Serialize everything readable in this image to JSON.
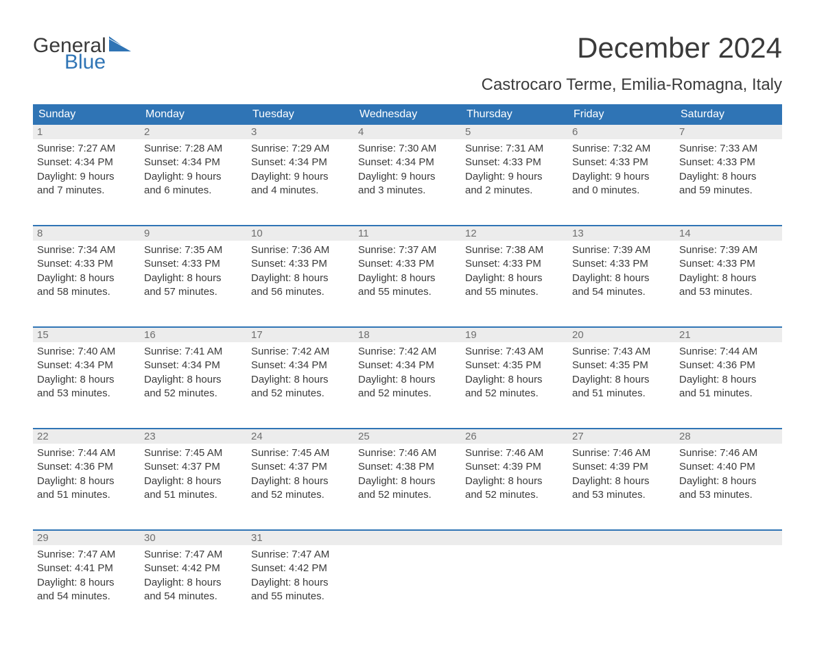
{
  "logo": {
    "word1": "General",
    "word2": "Blue",
    "accent_color": "#2f74b5"
  },
  "title": "December 2024",
  "location": "Castrocaro Terme, Emilia-Romagna, Italy",
  "colors": {
    "header_bg": "#2f74b5",
    "header_fg": "#ffffff",
    "daynum_bg": "#ececec",
    "daynum_fg": "#6e6e6e",
    "text": "#3a3a3a",
    "background": "#ffffff"
  },
  "weekdays": [
    "Sunday",
    "Monday",
    "Tuesday",
    "Wednesday",
    "Thursday",
    "Friday",
    "Saturday"
  ],
  "weeks": [
    [
      {
        "day": "1",
        "sunrise": "Sunrise: 7:27 AM",
        "sunset": "Sunset: 4:34 PM",
        "d1": "Daylight: 9 hours",
        "d2": "and 7 minutes."
      },
      {
        "day": "2",
        "sunrise": "Sunrise: 7:28 AM",
        "sunset": "Sunset: 4:34 PM",
        "d1": "Daylight: 9 hours",
        "d2": "and 6 minutes."
      },
      {
        "day": "3",
        "sunrise": "Sunrise: 7:29 AM",
        "sunset": "Sunset: 4:34 PM",
        "d1": "Daylight: 9 hours",
        "d2": "and 4 minutes."
      },
      {
        "day": "4",
        "sunrise": "Sunrise: 7:30 AM",
        "sunset": "Sunset: 4:34 PM",
        "d1": "Daylight: 9 hours",
        "d2": "and 3 minutes."
      },
      {
        "day": "5",
        "sunrise": "Sunrise: 7:31 AM",
        "sunset": "Sunset: 4:33 PM",
        "d1": "Daylight: 9 hours",
        "d2": "and 2 minutes."
      },
      {
        "day": "6",
        "sunrise": "Sunrise: 7:32 AM",
        "sunset": "Sunset: 4:33 PM",
        "d1": "Daylight: 9 hours",
        "d2": "and 0 minutes."
      },
      {
        "day": "7",
        "sunrise": "Sunrise: 7:33 AM",
        "sunset": "Sunset: 4:33 PM",
        "d1": "Daylight: 8 hours",
        "d2": "and 59 minutes."
      }
    ],
    [
      {
        "day": "8",
        "sunrise": "Sunrise: 7:34 AM",
        "sunset": "Sunset: 4:33 PM",
        "d1": "Daylight: 8 hours",
        "d2": "and 58 minutes."
      },
      {
        "day": "9",
        "sunrise": "Sunrise: 7:35 AM",
        "sunset": "Sunset: 4:33 PM",
        "d1": "Daylight: 8 hours",
        "d2": "and 57 minutes."
      },
      {
        "day": "10",
        "sunrise": "Sunrise: 7:36 AM",
        "sunset": "Sunset: 4:33 PM",
        "d1": "Daylight: 8 hours",
        "d2": "and 56 minutes."
      },
      {
        "day": "11",
        "sunrise": "Sunrise: 7:37 AM",
        "sunset": "Sunset: 4:33 PM",
        "d1": "Daylight: 8 hours",
        "d2": "and 55 minutes."
      },
      {
        "day": "12",
        "sunrise": "Sunrise: 7:38 AM",
        "sunset": "Sunset: 4:33 PM",
        "d1": "Daylight: 8 hours",
        "d2": "and 55 minutes."
      },
      {
        "day": "13",
        "sunrise": "Sunrise: 7:39 AM",
        "sunset": "Sunset: 4:33 PM",
        "d1": "Daylight: 8 hours",
        "d2": "and 54 minutes."
      },
      {
        "day": "14",
        "sunrise": "Sunrise: 7:39 AM",
        "sunset": "Sunset: 4:33 PM",
        "d1": "Daylight: 8 hours",
        "d2": "and 53 minutes."
      }
    ],
    [
      {
        "day": "15",
        "sunrise": "Sunrise: 7:40 AM",
        "sunset": "Sunset: 4:34 PM",
        "d1": "Daylight: 8 hours",
        "d2": "and 53 minutes."
      },
      {
        "day": "16",
        "sunrise": "Sunrise: 7:41 AM",
        "sunset": "Sunset: 4:34 PM",
        "d1": "Daylight: 8 hours",
        "d2": "and 52 minutes."
      },
      {
        "day": "17",
        "sunrise": "Sunrise: 7:42 AM",
        "sunset": "Sunset: 4:34 PM",
        "d1": "Daylight: 8 hours",
        "d2": "and 52 minutes."
      },
      {
        "day": "18",
        "sunrise": "Sunrise: 7:42 AM",
        "sunset": "Sunset: 4:34 PM",
        "d1": "Daylight: 8 hours",
        "d2": "and 52 minutes."
      },
      {
        "day": "19",
        "sunrise": "Sunrise: 7:43 AM",
        "sunset": "Sunset: 4:35 PM",
        "d1": "Daylight: 8 hours",
        "d2": "and 52 minutes."
      },
      {
        "day": "20",
        "sunrise": "Sunrise: 7:43 AM",
        "sunset": "Sunset: 4:35 PM",
        "d1": "Daylight: 8 hours",
        "d2": "and 51 minutes."
      },
      {
        "day": "21",
        "sunrise": "Sunrise: 7:44 AM",
        "sunset": "Sunset: 4:36 PM",
        "d1": "Daylight: 8 hours",
        "d2": "and 51 minutes."
      }
    ],
    [
      {
        "day": "22",
        "sunrise": "Sunrise: 7:44 AM",
        "sunset": "Sunset: 4:36 PM",
        "d1": "Daylight: 8 hours",
        "d2": "and 51 minutes."
      },
      {
        "day": "23",
        "sunrise": "Sunrise: 7:45 AM",
        "sunset": "Sunset: 4:37 PM",
        "d1": "Daylight: 8 hours",
        "d2": "and 51 minutes."
      },
      {
        "day": "24",
        "sunrise": "Sunrise: 7:45 AM",
        "sunset": "Sunset: 4:37 PM",
        "d1": "Daylight: 8 hours",
        "d2": "and 52 minutes."
      },
      {
        "day": "25",
        "sunrise": "Sunrise: 7:46 AM",
        "sunset": "Sunset: 4:38 PM",
        "d1": "Daylight: 8 hours",
        "d2": "and 52 minutes."
      },
      {
        "day": "26",
        "sunrise": "Sunrise: 7:46 AM",
        "sunset": "Sunset: 4:39 PM",
        "d1": "Daylight: 8 hours",
        "d2": "and 52 minutes."
      },
      {
        "day": "27",
        "sunrise": "Sunrise: 7:46 AM",
        "sunset": "Sunset: 4:39 PM",
        "d1": "Daylight: 8 hours",
        "d2": "and 53 minutes."
      },
      {
        "day": "28",
        "sunrise": "Sunrise: 7:46 AM",
        "sunset": "Sunset: 4:40 PM",
        "d1": "Daylight: 8 hours",
        "d2": "and 53 minutes."
      }
    ],
    [
      {
        "day": "29",
        "sunrise": "Sunrise: 7:47 AM",
        "sunset": "Sunset: 4:41 PM",
        "d1": "Daylight: 8 hours",
        "d2": "and 54 minutes."
      },
      {
        "day": "30",
        "sunrise": "Sunrise: 7:47 AM",
        "sunset": "Sunset: 4:42 PM",
        "d1": "Daylight: 8 hours",
        "d2": "and 54 minutes."
      },
      {
        "day": "31",
        "sunrise": "Sunrise: 7:47 AM",
        "sunset": "Sunset: 4:42 PM",
        "d1": "Daylight: 8 hours",
        "d2": "and 55 minutes."
      },
      null,
      null,
      null,
      null
    ]
  ]
}
